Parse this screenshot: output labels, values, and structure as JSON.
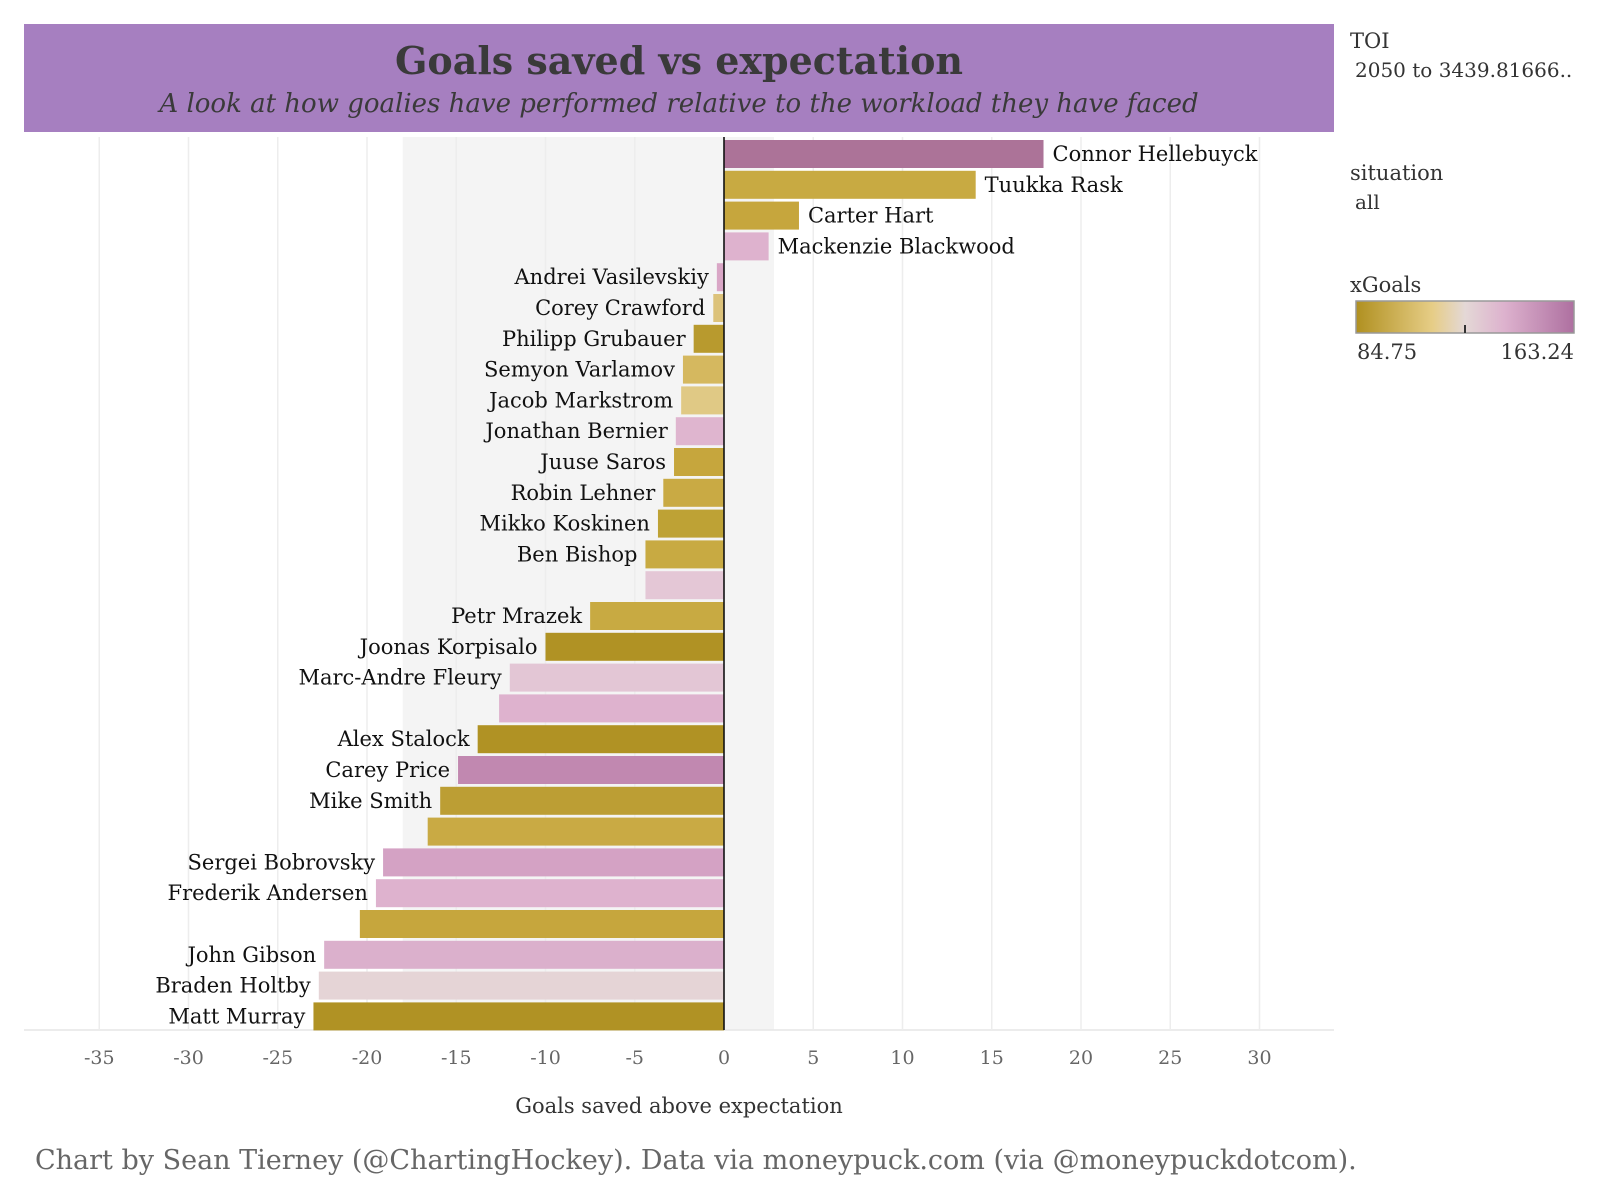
{
  "colors": {
    "banner": "#a67fc0",
    "low": "#b09020",
    "mid_low": "#e6cd86",
    "mid": "#e4d8d6",
    "mid_high": "#ddb2ce",
    "high": "#ae70a0"
  },
  "chart_data": {
    "type": "bar",
    "orientation": "horizontal",
    "title": "Goals saved vs expectation",
    "subtitle": "A look at how goalies have performed relative to the workload they have faced",
    "xlabel": "Goals saved above expectation",
    "xlim": [
      -39,
      34
    ],
    "xticks": [
      -35,
      -30,
      -25,
      -20,
      -15,
      -10,
      -5,
      0,
      5,
      10,
      15,
      20,
      25,
      30
    ],
    "grid": true,
    "shaded_band": [
      -18,
      2.8
    ],
    "caption": "Chart by Sean Tierney (@ChartingHockey). Data via moneypuck.com (via @moneypuckdotcom).",
    "legend": {
      "position": "right",
      "filter1_title": "TOI",
      "filter1_value": "2050 to 3439.81666..",
      "filter2_title": "situation",
      "filter2_value": "all",
      "color_title": "xGoals",
      "color_min": "84.75",
      "color_max": "163.24",
      "marker_fraction": 0.5
    },
    "bars": [
      {
        "name": "Connor Hellebuyck",
        "value": 17.9,
        "color": "#ac7398"
      },
      {
        "name": "Tuukka Rask",
        "value": 14.1,
        "color": "#c8aa42"
      },
      {
        "name": "Carter Hart",
        "value": 4.2,
        "color": "#c6a63d"
      },
      {
        "name": "Mackenzie Blackwood",
        "value": 2.5,
        "color": "#deb2ce"
      },
      {
        "name": "Andrei Vasilevskiy",
        "value": -0.4,
        "color": "#d9a6c6"
      },
      {
        "name": "Corey Crawford",
        "value": -0.6,
        "color": "#dcc27a"
      },
      {
        "name": "Philipp Grubauer",
        "value": -1.7,
        "color": "#b89a2e"
      },
      {
        "name": "Semyon Varlamov",
        "value": -2.3,
        "color": "#d5b85f"
      },
      {
        "name": "Jacob Markstrom",
        "value": -2.4,
        "color": "#e0c985"
      },
      {
        "name": "Jonathan Bernier",
        "value": -2.7,
        "color": "#dfb5cf"
      },
      {
        "name": "Juuse Saros",
        "value": -2.8,
        "color": "#c6a63d"
      },
      {
        "name": "Robin Lehner",
        "value": -3.4,
        "color": "#c9aa44"
      },
      {
        "name": "Mikko Koskinen",
        "value": -3.7,
        "color": "#bea235"
      },
      {
        "name": "Ben Bishop",
        "value": -4.4,
        "color": "#c8aa42"
      },
      {
        "name": "",
        "value": -4.4,
        "color": "#e4c7d6"
      },
      {
        "name": "Petr Mrazek",
        "value": -7.5,
        "color": "#c8aa42"
      },
      {
        "name": "Joonas Korpisalo",
        "value": -10.0,
        "color": "#b09224"
      },
      {
        "name": "Marc-Andre Fleury",
        "value": -12.0,
        "color": "#e3c6d5"
      },
      {
        "name": "",
        "value": -12.6,
        "color": "#deb2ce"
      },
      {
        "name": "Alex Stalock",
        "value": -13.8,
        "color": "#b09224"
      },
      {
        "name": "Carey Price",
        "value": -14.9,
        "color": "#c188b0"
      },
      {
        "name": "Mike Smith",
        "value": -15.9,
        "color": "#bc9e34"
      },
      {
        "name": "",
        "value": -16.6,
        "color": "#c9aa44"
      },
      {
        "name": "Sergei Bobrovsky",
        "value": -19.1,
        "color": "#d4a2c4"
      },
      {
        "name": "Frederik Andersen",
        "value": -19.5,
        "color": "#deb2ce"
      },
      {
        "name": "",
        "value": -20.4,
        "color": "#c6a63d"
      },
      {
        "name": "John Gibson",
        "value": -22.4,
        "color": "#dbb0cc"
      },
      {
        "name": "Braden Holtby",
        "value": -22.7,
        "color": "#e5d4d6"
      },
      {
        "name": "Matt Murray",
        "value": -23.0,
        "color": "#b09224"
      }
    ]
  }
}
